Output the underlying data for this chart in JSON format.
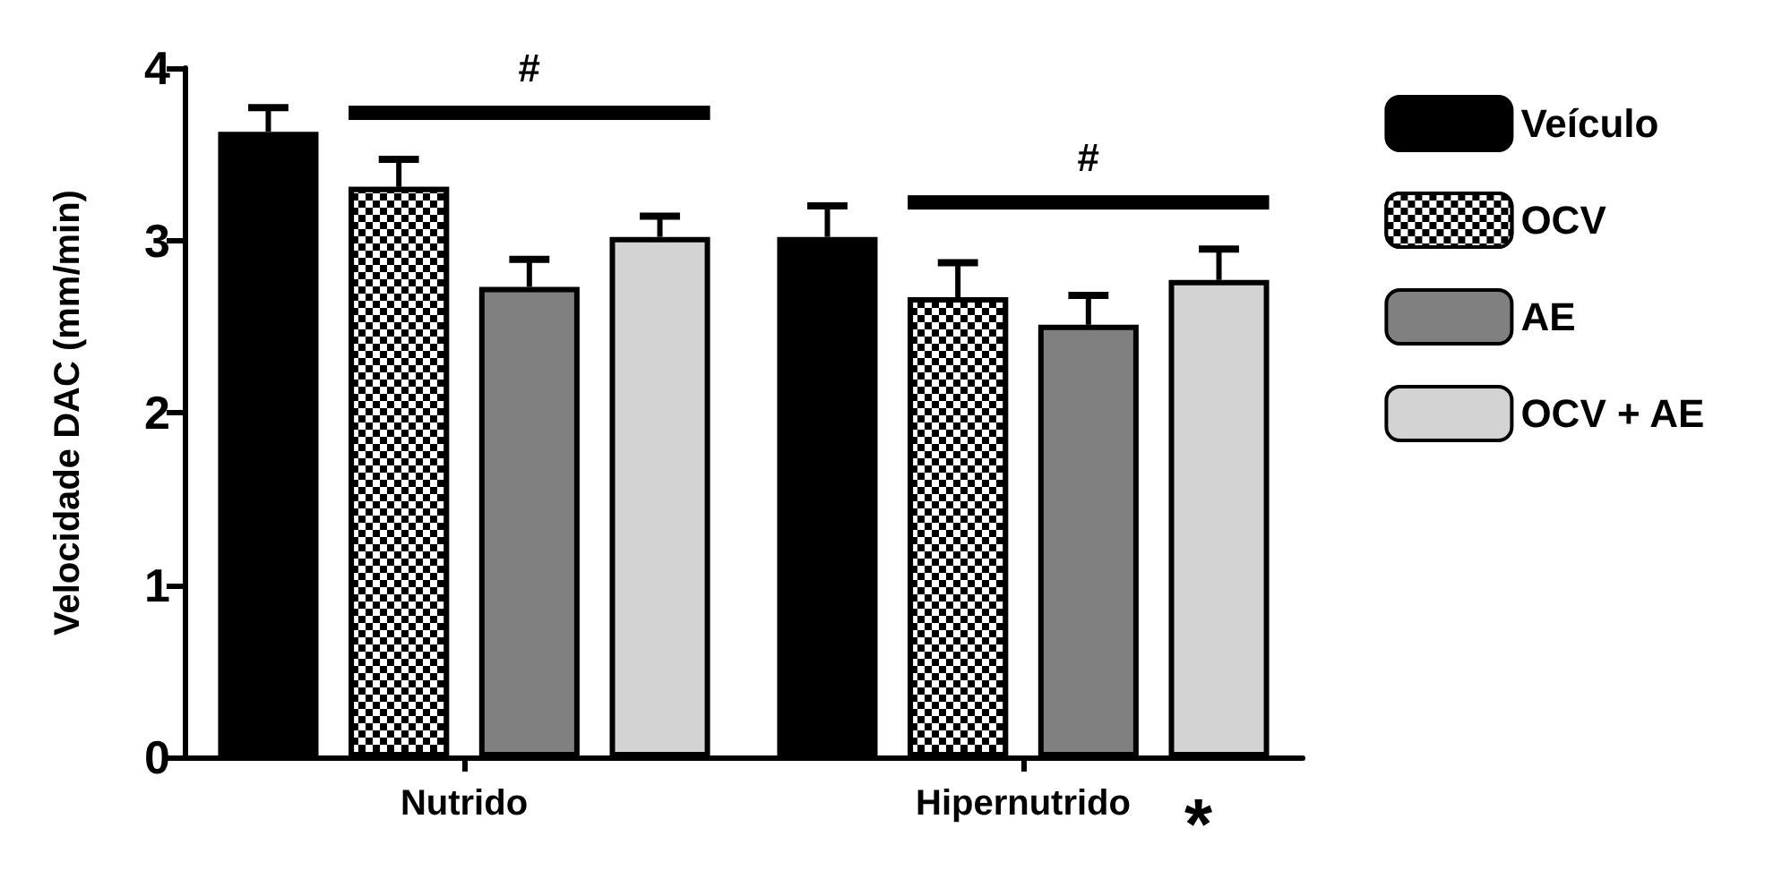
{
  "chart_data": {
    "type": "bar",
    "ylabel": "Velocidade DAC (mm/min)",
    "categories": [
      "Nutrido",
      "Hipernutrido"
    ],
    "series": [
      {
        "name": "Veículo",
        "color": "#000000",
        "values": [
          3.63,
          3.02
        ],
        "errors": [
          0.14,
          0.18
        ]
      },
      {
        "name": "OCV",
        "color": "#000000",
        "values": [
          3.31,
          2.67
        ],
        "errors": [
          0.16,
          0.2
        ]
      },
      {
        "name": "AE",
        "color": "#808080",
        "values": [
          2.73,
          2.51
        ],
        "errors": [
          0.16,
          0.17
        ]
      },
      {
        "name": "OCV + AE",
        "color": "#d3d3d3",
        "values": [
          3.02,
          2.77
        ],
        "errors": [
          0.12,
          0.18
        ]
      }
    ],
    "ylim": [
      0,
      4
    ],
    "yticks": [
      0,
      1,
      2,
      3,
      4
    ],
    "grid": false,
    "legend": "right",
    "annotations": [
      "#",
      "#",
      "*"
    ]
  }
}
